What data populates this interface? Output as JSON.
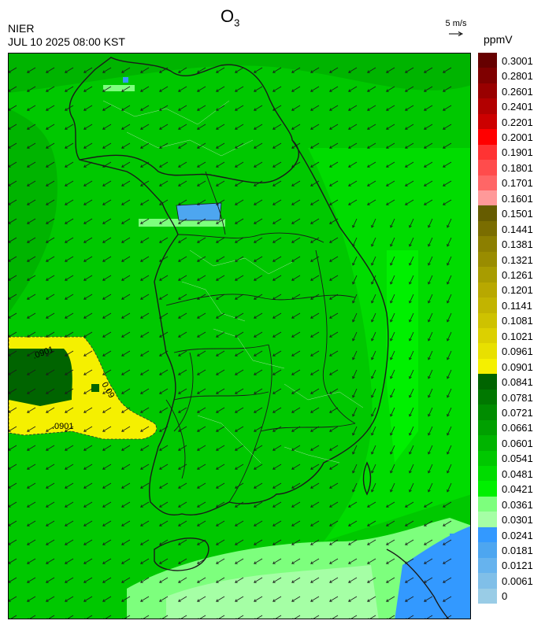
{
  "header": {
    "title_main": "O",
    "title_sub": "3",
    "org": "NIER",
    "timestamp": "JUL 10 2025 08:00 KST",
    "wind_ref": "5 m/s",
    "unit": "ppmV"
  },
  "map": {
    "contour_label": "0.0901",
    "contour_labels_shown": [
      ".0901",
      "0.09",
      ".0901"
    ]
  },
  "colorbar": {
    "levels": [
      {
        "label": "0.3001",
        "color": "#660000"
      },
      {
        "label": "0.2801",
        "color": "#7f0000"
      },
      {
        "label": "0.2601",
        "color": "#990000"
      },
      {
        "label": "0.2401",
        "color": "#b20000"
      },
      {
        "label": "0.2201",
        "color": "#cc0000"
      },
      {
        "label": "0.2001",
        "color": "#ff0000"
      },
      {
        "label": "0.1901",
        "color": "#ff3333"
      },
      {
        "label": "0.1801",
        "color": "#ff4c4c"
      },
      {
        "label": "0.1701",
        "color": "#ff6666"
      },
      {
        "label": "0.1601",
        "color": "#ff9999"
      },
      {
        "label": "0.1501",
        "color": "#665c00"
      },
      {
        "label": "0.1441",
        "color": "#7a6d00"
      },
      {
        "label": "0.1381",
        "color": "#8c7f00"
      },
      {
        "label": "0.1321",
        "color": "#998c00"
      },
      {
        "label": "0.1261",
        "color": "#a89c00"
      },
      {
        "label": "0.1201",
        "color": "#b8a800"
      },
      {
        "label": "0.1141",
        "color": "#c2b400"
      },
      {
        "label": "0.1081",
        "color": "#cec200"
      },
      {
        "label": "0.1021",
        "color": "#dcd000"
      },
      {
        "label": "0.0961",
        "color": "#e8e000"
      },
      {
        "label": "0.0901",
        "color": "#f5f000"
      },
      {
        "label": "0.0841",
        "color": "#006400"
      },
      {
        "label": "0.0781",
        "color": "#007800"
      },
      {
        "label": "0.0721",
        "color": "#008c00"
      },
      {
        "label": "0.0661",
        "color": "#00a000"
      },
      {
        "label": "0.0601",
        "color": "#00b400"
      },
      {
        "label": "0.0541",
        "color": "#00c800"
      },
      {
        "label": "0.0481",
        "color": "#00dc00"
      },
      {
        "label": "0.0421",
        "color": "#00f000"
      },
      {
        "label": "0.0361",
        "color": "#7dff7d"
      },
      {
        "label": "0.0301",
        "color": "#a5ffa5"
      },
      {
        "label": "0.0241",
        "color": "#3399ff"
      },
      {
        "label": "0.0181",
        "color": "#4da6f0"
      },
      {
        "label": "0.0121",
        "color": "#66b3ee"
      },
      {
        "label": "0.0061",
        "color": "#80bfe8"
      },
      {
        "label": "0",
        "color": "#99cce6"
      }
    ]
  }
}
